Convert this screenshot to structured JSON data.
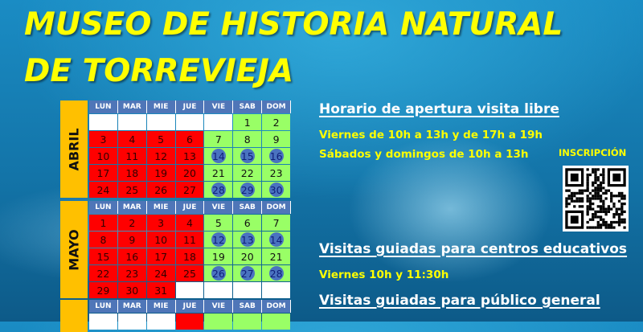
{
  "title": {
    "line1": "MUSEO DE HISTORIA NATURAL",
    "line2": "DE TORREVIEJA"
  },
  "calendar": {
    "weekdays": [
      "LUN",
      "MAR",
      "MIE",
      "JUE",
      "VIE",
      "SAB",
      "DOM"
    ],
    "colors": {
      "closed": "#ff0000",
      "open": "#99ff66",
      "guided_circle": "#4a73c0",
      "month_label": "#ffc000",
      "header": "#4f76b8"
    },
    "months": [
      {
        "name": "ABRIL",
        "weeks": [
          [
            null,
            null,
            null,
            null,
            null,
            1,
            2
          ],
          [
            3,
            4,
            5,
            6,
            7,
            8,
            9
          ],
          [
            10,
            11,
            12,
            13,
            14,
            15,
            16
          ],
          [
            17,
            18,
            19,
            20,
            21,
            22,
            23
          ],
          [
            24,
            25,
            26,
            27,
            28,
            29,
            30
          ]
        ],
        "guided_days": [
          14,
          15,
          16,
          28,
          29,
          30
        ]
      },
      {
        "name": "MAYO",
        "weeks": [
          [
            1,
            2,
            3,
            4,
            5,
            6,
            7
          ],
          [
            8,
            9,
            10,
            11,
            12,
            13,
            14
          ],
          [
            15,
            16,
            17,
            18,
            19,
            20,
            21
          ],
          [
            22,
            23,
            24,
            25,
            26,
            27,
            28
          ],
          [
            29,
            30,
            31,
            null,
            null,
            null,
            null
          ]
        ],
        "guided_days": [
          12,
          13,
          14,
          26,
          27,
          28
        ]
      },
      {
        "name": "",
        "weeks": [
          [
            null,
            null,
            null,
            "",
            "",
            "",
            ""
          ]
        ],
        "guided_days": []
      }
    ]
  },
  "info": {
    "free_visit_heading": "Horario de apertura visita libre",
    "free_visit_line1": "Viernes de 10h a 13h y de 17h a 19h",
    "free_visit_line2": "Sábados y domingos de 10h a 13h",
    "schools_heading": "Visitas guiadas para centros educativos",
    "schools_line": "Viernes 10h y 11:30h",
    "public_heading": "Visitas guiadas para público general"
  },
  "registration": {
    "label": "INSCRIPCIÓN",
    "icon": "qr-code-icon"
  }
}
